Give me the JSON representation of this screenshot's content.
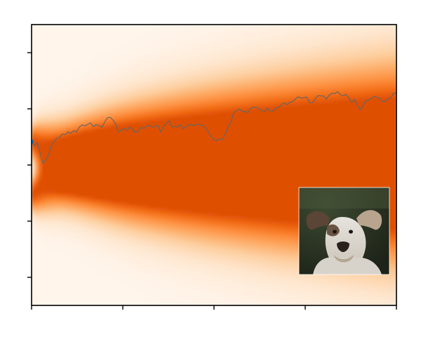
{
  "chart_data": {
    "type": "heatmap",
    "title": "",
    "xlabel": "",
    "ylabel": "",
    "x_range": [
      0,
      520
    ],
    "y_range": [
      0,
      100
    ],
    "x_ticks": [
      0,
      130,
      260,
      390,
      520
    ],
    "y_ticks": [
      10,
      30,
      50,
      70,
      90
    ],
    "tick_labels_shown": false,
    "grid": false,
    "colormap": "Oranges",
    "density": {
      "branch_centers_at_start": [
        58.5,
        39.5
      ],
      "merged_center": 50.5,
      "merge_x": 110,
      "spread_start": 3,
      "spread_end": 20
    },
    "series": [
      {
        "x": [
          0,
          4,
          8,
          12,
          16,
          20,
          24,
          28,
          32,
          36,
          40,
          44,
          48,
          52,
          56,
          60,
          64,
          68,
          72,
          76,
          80,
          84,
          88,
          92,
          96,
          100,
          104,
          108,
          112,
          116,
          120,
          124,
          128,
          132,
          136,
          140,
          144,
          148,
          152,
          156,
          160,
          164,
          168,
          172,
          176,
          180,
          184,
          188,
          192,
          196,
          200,
          204,
          208,
          212,
          216,
          220,
          224,
          228,
          232,
          236,
          240,
          244,
          248,
          252,
          256,
          260,
          264,
          268,
          272,
          276,
          280,
          284,
          288,
          292,
          296,
          300,
          304,
          308,
          312,
          316,
          320,
          324,
          328,
          332,
          336,
          340,
          344,
          348,
          352,
          356,
          360,
          364,
          368,
          372,
          376,
          380,
          384,
          388,
          392,
          396,
          400,
          404,
          408,
          412,
          416,
          420,
          424,
          428,
          432,
          436,
          440,
          444,
          448,
          452,
          456,
          460,
          464,
          468,
          472,
          476,
          480,
          484,
          488,
          492,
          496,
          500,
          504,
          508,
          512,
          516,
          520
        ],
        "y": [
          58.3,
          56.8,
          58.1,
          54.5,
          50.6,
          51.8,
          53.4,
          56.9,
          58.2,
          59.5,
          59.9,
          61.0,
          60.8,
          61.8,
          61.3,
          62.2,
          61.8,
          63.5,
          64.3,
          63.9,
          64.5,
          65.0,
          63.6,
          64.4,
          64.0,
          63.4,
          65.2,
          66.8,
          67.0,
          66.0,
          64.5,
          61.7,
          62.4,
          63.1,
          62.3,
          63.5,
          62.8,
          61.5,
          62.0,
          63.4,
          63.0,
          63.8,
          64.1,
          63.5,
          63.8,
          64.1,
          61.7,
          63.7,
          64.9,
          65.8,
          63.5,
          63.8,
          63.5,
          64.4,
          62.9,
          63.6,
          64.3,
          64.3,
          64.0,
          64.6,
          64.2,
          64.1,
          63.2,
          61.7,
          60.0,
          58.9,
          58.7,
          59.3,
          59.0,
          61.0,
          63.6,
          65.2,
          68.6,
          69.4,
          70.0,
          69.1,
          69.1,
          68.6,
          70.1,
          70.6,
          70.6,
          70.1,
          69.5,
          68.9,
          70.3,
          69.2,
          69.2,
          70.4,
          70.4,
          71.5,
          72.2,
          71.5,
          72.4,
          72.6,
          73.5,
          74.3,
          73.8,
          73.9,
          74.2,
          72.3,
          72.1,
          73.4,
          74.7,
          74.6,
          74.6,
          73.5,
          74.8,
          75.5,
          75.4,
          76.1,
          75.1,
          74.6,
          75.2,
          73.9,
          72.3,
          73.4,
          71.5,
          69.6,
          70.8,
          72.9,
          73.1,
          73.7,
          74.4,
          74.1,
          73.8,
          72.6,
          72.6,
          73.6,
          74.0,
          75.6,
          75.7
        ],
        "color": "#666666",
        "start_marker_color": "#1f77b4"
      }
    ],
    "inset_image": "dog-photo"
  }
}
